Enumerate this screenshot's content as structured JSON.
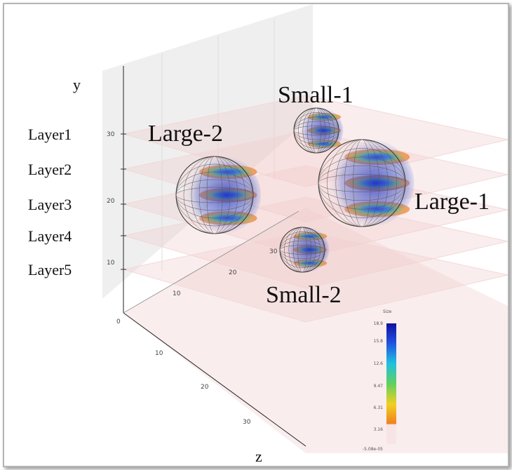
{
  "axes": {
    "y_label": "y",
    "z_label": "z",
    "y_ticks": [
      "30",
      "20",
      "10"
    ],
    "x_ticks": [
      "10",
      "20",
      "30"
    ],
    "z_ticks": [
      "0",
      "10",
      "20",
      "30"
    ]
  },
  "layers": [
    "Layer1",
    "Layer2",
    "Layer3",
    "Layer4",
    "Layer5"
  ],
  "objects": [
    "Large-2",
    "Small-1",
    "Large-1",
    "Small-2"
  ],
  "colorbar": {
    "title": "Size",
    "labels": [
      "18.9",
      "15.8",
      "12.6",
      "9.47",
      "6.31",
      "3.16",
      "-5.08e-05"
    ]
  }
}
